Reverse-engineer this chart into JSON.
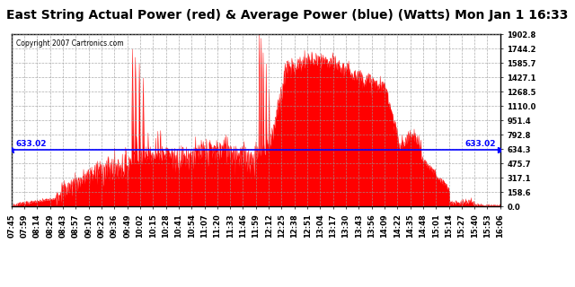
{
  "title": "East String Actual Power (red) & Average Power (blue) (Watts) Mon Jan 1 16:33",
  "copyright": "Copyright 2007 Cartronics.com",
  "avg_power": 633.02,
  "ymin": 0.0,
  "ymax": 1902.8,
  "yticks": [
    0.0,
    158.6,
    317.1,
    475.7,
    634.3,
    792.8,
    951.4,
    1110.0,
    1268.5,
    1427.1,
    1585.7,
    1744.2,
    1902.8
  ],
  "ytick_labels": [
    "0.0",
    "158.6",
    "317.1",
    "475.7",
    "634.3",
    "792.8",
    "951.4",
    "1110.0",
    "1268.5",
    "1427.1",
    "1585.7",
    "1744.2",
    "1902.8"
  ],
  "bg_color": "#ffffff",
  "plot_bg_color": "#ffffff",
  "grid_color": "#999999",
  "red_color": "#ff0000",
  "blue_color": "#0000ff",
  "title_fontsize": 10,
  "x_labels": [
    "07:45",
    "07:59",
    "08:14",
    "08:29",
    "08:43",
    "08:57",
    "09:10",
    "09:23",
    "09:36",
    "09:49",
    "10:02",
    "10:15",
    "10:28",
    "10:41",
    "10:54",
    "11:07",
    "11:20",
    "11:33",
    "11:46",
    "11:59",
    "12:12",
    "12:25",
    "12:38",
    "12:51",
    "13:04",
    "13:17",
    "13:30",
    "13:43",
    "13:56",
    "14:09",
    "14:22",
    "14:35",
    "14:48",
    "15:01",
    "15:14",
    "15:27",
    "15:40",
    "15:53",
    "16:06"
  ]
}
